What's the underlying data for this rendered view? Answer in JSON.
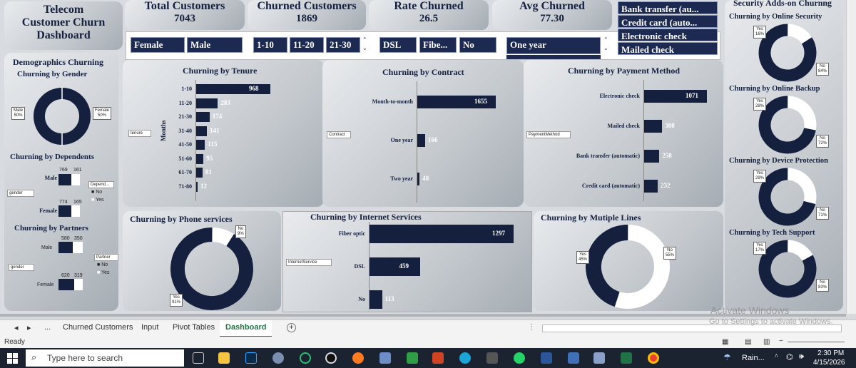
{
  "dashboard": {
    "title_lines": [
      "Telecom",
      "Customer Churn",
      "Dashboard"
    ],
    "kpis": [
      {
        "label": "Total Customers",
        "value": "7043"
      },
      {
        "label": "Churned Customers",
        "value": "1869"
      },
      {
        "label": "Rate Churned",
        "value": "26.5"
      },
      {
        "label": "Avg Churned",
        "value": "77.30"
      }
    ],
    "slicers": {
      "gender": [
        "Female",
        "Male"
      ],
      "tenure": [
        "1-10",
        "11-20",
        "21-30"
      ],
      "internet": [
        "DSL",
        "Fibe...",
        "No"
      ],
      "contract": [
        "One year"
      ],
      "payment": [
        "Bank transfer (au...",
        "Credit card (auto...",
        "Electronic check",
        "Mailed check"
      ]
    },
    "colors": {
      "navy": "#15203f",
      "slicer": "#1c2a52"
    }
  },
  "demographics": {
    "title": "Demographics Churning",
    "gender": {
      "title": "Churning by Gender",
      "male_label": "Male",
      "male_pct": "50%",
      "female_label": "Female",
      "female_pct": "50%"
    },
    "dependents": {
      "title": "Churning by Dependents",
      "filter": "gender",
      "legend_title": "Depend...",
      "legend_no": "No",
      "legend_yes": "Yes",
      "rows": [
        {
          "label": "Male",
          "no": "769",
          "yes": "161"
        },
        {
          "label": "Female",
          "no": "774",
          "yes": "165"
        }
      ]
    },
    "partners": {
      "title": "Churning by Partners",
      "filter": "gender",
      "legend_title": "Partner",
      "legend_no": "No",
      "legend_yes": "Yes",
      "rows": [
        {
          "label": "Male",
          "no": "580",
          "yes": "350"
        },
        {
          "label": "Female",
          "no": "620",
          "yes": "319"
        }
      ]
    }
  },
  "security": {
    "title": "Security Adds-on Churnng",
    "charts": [
      {
        "title": "Churning by Online Security",
        "yes": "Yes",
        "yes_pct": "16%",
        "no": "No",
        "no_pct": "84%",
        "yes_frac": 0.16
      },
      {
        "title": "Churning by Online Backup",
        "yes": "Yes",
        "yes_pct": "28%",
        "no": "No",
        "no_pct": "72%",
        "yes_frac": 0.28
      },
      {
        "title": "Churning by Device Protection",
        "yes": "Yes",
        "yes_pct": "29%",
        "no": "No",
        "no_pct": "71%",
        "yes_frac": 0.29
      },
      {
        "title": "Churning by Tech Support",
        "yes": "Yes",
        "yes_pct": "17%",
        "no": "No",
        "no_pct": "83%",
        "yes_frac": 0.17
      }
    ]
  },
  "chart_data": [
    {
      "type": "bar",
      "title": "Churning by Tenure",
      "ylabel": "Months",
      "filter": "tenure",
      "categories": [
        "1-10",
        "11-20",
        "21-30",
        "31-40",
        "41-50",
        "51-60",
        "61-70",
        "71-80"
      ],
      "values": [
        968,
        283,
        174,
        141,
        115,
        95,
        81,
        12
      ]
    },
    {
      "type": "bar",
      "title": "Churning by Contract",
      "filter": "Contract",
      "categories": [
        "Month-to-month",
        "One year",
        "Two year"
      ],
      "values": [
        1655,
        166,
        48
      ]
    },
    {
      "type": "bar",
      "title": "Churning by Payment Method",
      "filter": "PaymentMethod",
      "categories": [
        "Electronic check",
        "Mailed check",
        "Bank transfer (automatic)",
        "Credit card (automatic)"
      ],
      "values": [
        1071,
        308,
        258,
        232
      ]
    },
    {
      "type": "pie",
      "title": "Churning by Phone services",
      "labels": [
        "No",
        "Yes"
      ],
      "values": [
        9,
        91
      ],
      "pct_labels": [
        "9%",
        "91%"
      ]
    },
    {
      "type": "bar",
      "title": "Churning by Internet Services",
      "filter": "InternetService",
      "categories": [
        "Fiber optic",
        "DSL",
        "No"
      ],
      "values": [
        1297,
        459,
        113
      ]
    },
    {
      "type": "pie",
      "title": "Churning by Mutiple Lines",
      "labels": [
        "Yes",
        "No"
      ],
      "values": [
        45,
        55
      ],
      "pct_labels": [
        "45%",
        "55%"
      ]
    }
  ],
  "excel": {
    "tabs": [
      "...",
      "Churned Customers",
      "Input",
      "Pivot Tables",
      "Dashboard"
    ],
    "active_tab": "Dashboard",
    "status": "Ready",
    "watermark1": "Activate Windows",
    "watermark2": "Go to Settings to activate Windows."
  },
  "taskbar": {
    "search_placeholder": "Type here to search",
    "weather": "Rain...",
    "time": "2:30 PM",
    "date": "4/15/2026"
  }
}
